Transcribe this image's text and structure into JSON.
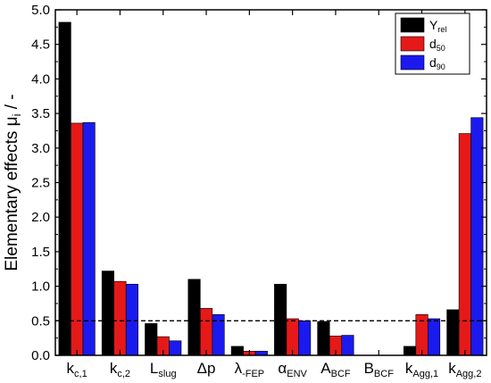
{
  "chart_data": {
    "type": "bar",
    "categories": [
      {
        "main": "k",
        "sub": "c,1",
        "prefix": ""
      },
      {
        "main": "k",
        "sub": "c,2",
        "prefix": ""
      },
      {
        "main": "L",
        "sub": "slug",
        "prefix": ""
      },
      {
        "main": "Δp",
        "sub": "",
        "prefix": ""
      },
      {
        "main": "λ",
        "sub": "FEP",
        "prefix": "-"
      },
      {
        "main": "α",
        "sub": "ENV",
        "prefix": ""
      },
      {
        "main": "A",
        "sub": "BCF",
        "prefix": ""
      },
      {
        "main": "B",
        "sub": "BCF",
        "prefix": ""
      },
      {
        "main": "k",
        "sub": "Agg,1",
        "prefix": ""
      },
      {
        "main": "k",
        "sub": "Agg,2",
        "prefix": ""
      }
    ],
    "series": [
      {
        "name_main": "Y",
        "name_sub": "rel",
        "color": "#000000",
        "values": [
          4.82,
          1.22,
          0.46,
          1.1,
          0.13,
          1.03,
          0.49,
          0.0,
          0.13,
          0.66
        ]
      },
      {
        "name_main": "d",
        "name_sub": "50",
        "color": "#e61919",
        "values": [
          3.36,
          1.07,
          0.27,
          0.68,
          0.06,
          0.53,
          0.28,
          0.0,
          0.59,
          3.21
        ]
      },
      {
        "name_main": "d",
        "name_sub": "90",
        "color": "#1a1aee",
        "values": [
          3.37,
          1.03,
          0.21,
          0.59,
          0.06,
          0.5,
          0.29,
          0.0,
          0.53,
          3.44
        ]
      }
    ],
    "ylabel": "Elementary effects μ",
    "ylabel_sub": "i",
    "ylabel_suffix": " / -",
    "ylim": [
      0.0,
      5.0
    ],
    "yticks": [
      "0.0",
      "0.5",
      "1.0",
      "1.5",
      "2.0",
      "2.5",
      "3.0",
      "3.5",
      "4.0",
      "4.5",
      "5.0"
    ],
    "reference_line": 0.5,
    "legend_position": "top-right",
    "grid": false
  }
}
